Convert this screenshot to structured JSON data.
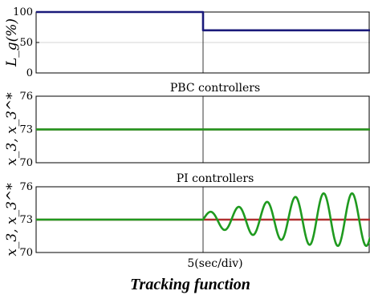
{
  "chart_data": [
    {
      "type": "line",
      "ylabel": "L_g(%)",
      "ylim": [
        0,
        100
      ],
      "yticks": [
        "100",
        "50",
        "0"
      ],
      "grid": true,
      "series": [
        {
          "color": "#1a1a7a",
          "x": [
            0,
            5,
            5,
            10
          ],
          "y": [
            100,
            100,
            70,
            70
          ]
        }
      ]
    },
    {
      "type": "line",
      "title": "PBC controllers",
      "ylabel": "x_3, x_3^*",
      "ylim": [
        70,
        76
      ],
      "yticks": [
        "76",
        "73",
        "70"
      ],
      "grid": true,
      "series": [
        {
          "color": "#b03030",
          "x": [
            0,
            10
          ],
          "y": [
            73,
            73
          ]
        },
        {
          "color": "#1f9a1f",
          "x": [
            0,
            10
          ],
          "y": [
            73,
            73
          ]
        }
      ]
    },
    {
      "type": "line",
      "title": "PI controllers",
      "ylabel": "x_3, x_3^*",
      "ylim": [
        70,
        76
      ],
      "yticks": [
        "76",
        "73",
        "70"
      ],
      "grid": true,
      "xlabel": "5(sec/div)",
      "series": [
        {
          "color": "#b03030",
          "x": [
            0,
            10
          ],
          "y": [
            73,
            73
          ]
        },
        {
          "color": "#1f9a1f",
          "x": [
            0,
            5,
            5.2,
            5.5,
            5.8,
            6.2,
            6.6,
            7.1,
            7.5,
            8.0,
            8.5,
            9.0,
            9.4,
            9.8,
            10
          ],
          "y": [
            73,
            73,
            73.6,
            72.0,
            74.6,
            71.6,
            75.0,
            71.3,
            75.3,
            71.0,
            75.4,
            71.0,
            75.3,
            71.2,
            72.5
          ],
          "oscillation": {
            "start": 5,
            "mean": 73,
            "amplitude_end": 2.4,
            "period": 0.85
          }
        }
      ]
    }
  ],
  "caption": "Tracking function"
}
